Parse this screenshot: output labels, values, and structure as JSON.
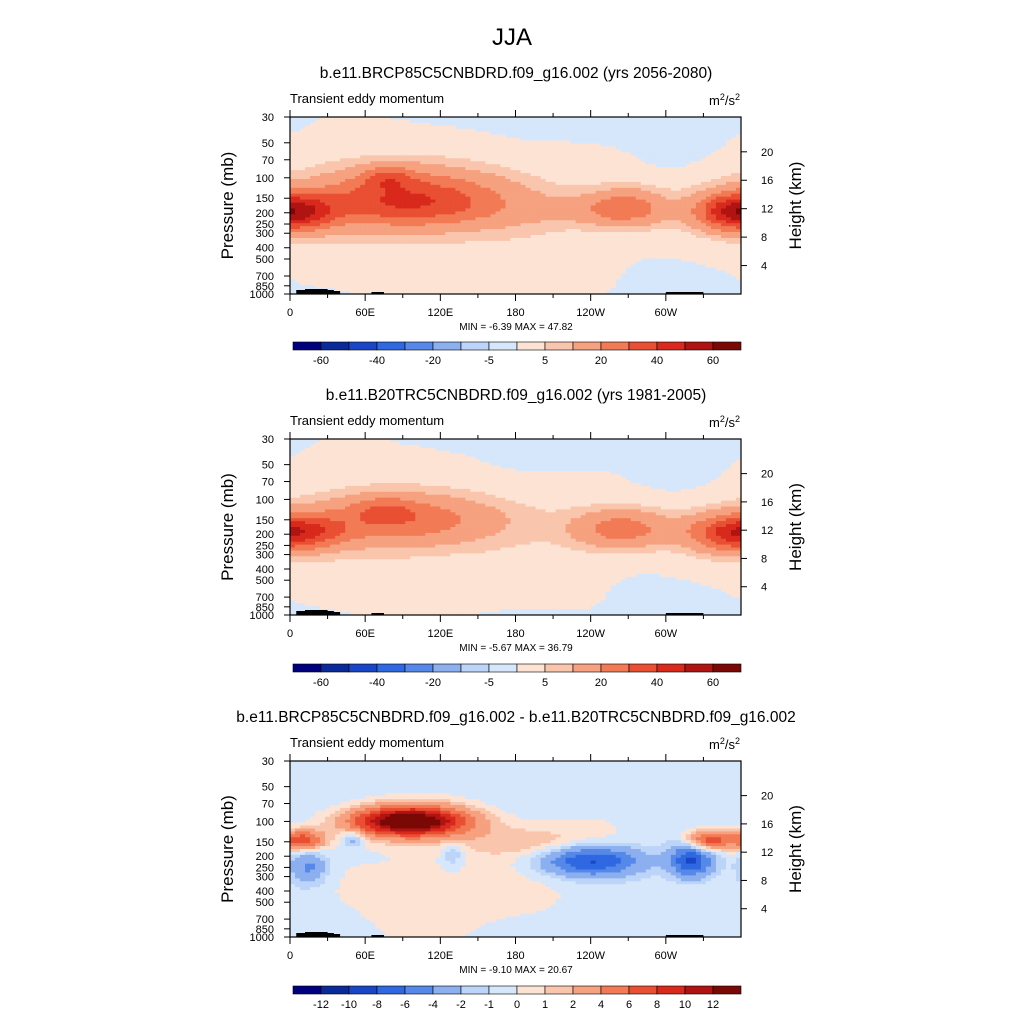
{
  "figure_title": "JJA",
  "colors": {
    "ocean": "#d4e6fb",
    "frame": "#000000",
    "terrain": "#000000"
  },
  "palette": [
    "#00007f",
    "#0a2a9a",
    "#1946c6",
    "#2f68e0",
    "#5588e8",
    "#8caff0",
    "#bcd4f7",
    "#d6e7fb",
    "#fde3d4",
    "#f9c6ad",
    "#f6a17f",
    "#f27a55",
    "#e94f33",
    "#d8291c",
    "#b01412",
    "#7a0805"
  ],
  "chart_data": [
    {
      "type": "heatmap",
      "title": "b.e11.BRCP85C5CNBDRD.f09_g16.002 (yrs 2056-2080)",
      "left_label": "Transient eddy momentum",
      "units": "m2/s2",
      "ylabel": "Pressure (mb)",
      "ylabel_right": "Height (km)",
      "x_ticks": [
        "0",
        "60E",
        "120E",
        "180",
        "120W",
        "60W"
      ],
      "x_tick_values": [
        0,
        60,
        120,
        180,
        240,
        300
      ],
      "xlim": [
        0,
        360
      ],
      "y_ticks": [
        "30",
        "50",
        "70",
        "100",
        "150",
        "200",
        "250",
        "300",
        "400",
        "500",
        "700",
        "850",
        "1000"
      ],
      "y_tick_values": [
        30,
        50,
        70,
        100,
        150,
        200,
        250,
        300,
        400,
        500,
        700,
        850,
        1000
      ],
      "ylim": [
        30,
        1000
      ],
      "height_ticks": [
        "20",
        "16",
        "12",
        "8",
        "4"
      ],
      "height_tick_values": [
        20,
        16,
        12,
        8,
        4
      ],
      "stats": "MIN =  -6.39  MAX =  47.82",
      "min": -6.39,
      "max": 47.82,
      "colorbar_levels": [
        -70,
        -60,
        -50,
        -40,
        -30,
        -20,
        -10,
        -5,
        0,
        5,
        10,
        20,
        30,
        40,
        50,
        60,
        70
      ],
      "colorbar_labels": [
        "-60",
        "-40",
        "-20",
        "-5",
        "5",
        "20",
        "40",
        "60"
      ],
      "colorbar_label_values": [
        -60,
        -40,
        -20,
        -5,
        5,
        20,
        40,
        60
      ],
      "features": [
        {
          "lon": 95,
          "p": 145,
          "dlon": 55,
          "dlogp": 0.17,
          "amp": 32
        },
        {
          "lon": 78,
          "p": 100,
          "dlon": 14,
          "dlogp": 0.07,
          "amp": 16
        },
        {
          "lon": 100,
          "p": 190,
          "dlon": 65,
          "dlogp": 0.12,
          "amp": 9
        },
        {
          "lon": 8,
          "p": 200,
          "dlon": 22,
          "dlogp": 0.11,
          "amp": 26
        },
        {
          "lon": 270,
          "p": 180,
          "dlon": 22,
          "dlogp": 0.12,
          "amp": 22
        },
        {
          "lon": 240,
          "p": 190,
          "dlon": 35,
          "dlogp": 0.09,
          "amp": 8
        },
        {
          "lon": 350,
          "p": 195,
          "dlon": 22,
          "dlogp": 0.12,
          "amp": 30
        },
        {
          "lon": 180,
          "p": 230,
          "dlon": 60,
          "dlogp": 0.35,
          "amp": 4
        },
        {
          "lon": 60,
          "p": 180,
          "dlon": 50,
          "dlogp": 0.4,
          "amp": 4
        }
      ]
    },
    {
      "type": "heatmap",
      "title": "b.e11.B20TRC5CNBDRD.f09_g16.002 (yrs 1981-2005)",
      "left_label": "Transient eddy momentum",
      "units": "m2/s2",
      "ylabel": "Pressure (mb)",
      "ylabel_right": "Height (km)",
      "x_ticks": [
        "0",
        "60E",
        "120E",
        "180",
        "120W",
        "60W"
      ],
      "x_tick_values": [
        0,
        60,
        120,
        180,
        240,
        300
      ],
      "xlim": [
        0,
        360
      ],
      "y_ticks": [
        "30",
        "50",
        "70",
        "100",
        "150",
        "200",
        "250",
        "300",
        "400",
        "500",
        "700",
        "850",
        "1000"
      ],
      "y_tick_values": [
        30,
        50,
        70,
        100,
        150,
        200,
        250,
        300,
        400,
        500,
        700,
        850,
        1000
      ],
      "ylim": [
        30,
        1000
      ],
      "height_ticks": [
        "20",
        "16",
        "12",
        "8",
        "4"
      ],
      "height_tick_values": [
        20,
        16,
        12,
        8,
        4
      ],
      "stats": "MIN =  -5.67  MAX =  36.79",
      "min": -5.67,
      "max": 36.79,
      "colorbar_levels": [
        -70,
        -60,
        -50,
        -40,
        -30,
        -20,
        -10,
        -5,
        0,
        5,
        10,
        20,
        30,
        40,
        50,
        60,
        70
      ],
      "colorbar_labels": [
        "-60",
        "-40",
        "-20",
        "-5",
        "5",
        "20",
        "40",
        "60"
      ],
      "colorbar_label_values": [
        -60,
        -40,
        -20,
        -5,
        5,
        20,
        40,
        60
      ],
      "features": [
        {
          "lon": 90,
          "p": 150,
          "dlon": 55,
          "dlogp": 0.15,
          "amp": 25
        },
        {
          "lon": 75,
          "p": 120,
          "dlon": 18,
          "dlogp": 0.08,
          "amp": 10
        },
        {
          "lon": 10,
          "p": 190,
          "dlon": 25,
          "dlogp": 0.1,
          "amp": 22
        },
        {
          "lon": 265,
          "p": 180,
          "dlon": 28,
          "dlogp": 0.12,
          "amp": 25
        },
        {
          "lon": 350,
          "p": 200,
          "dlon": 25,
          "dlogp": 0.12,
          "amp": 28
        },
        {
          "lon": 180,
          "p": 230,
          "dlon": 60,
          "dlogp": 0.35,
          "amp": 3
        },
        {
          "lon": 60,
          "p": 180,
          "dlon": 50,
          "dlogp": 0.4,
          "amp": 4
        }
      ]
    },
    {
      "type": "heatmap",
      "title": "b.e11.BRCP85C5CNBDRD.f09_g16.002 - b.e11.B20TRC5CNBDRD.f09_g16.002",
      "left_label": "Transient eddy momentum",
      "units": "m2/s2",
      "ylabel": "Pressure (mb)",
      "ylabel_right": "Height (km)",
      "x_ticks": [
        "0",
        "60E",
        "120E",
        "180",
        "120W",
        "60W"
      ],
      "x_tick_values": [
        0,
        60,
        120,
        180,
        240,
        300
      ],
      "xlim": [
        0,
        360
      ],
      "y_ticks": [
        "30",
        "50",
        "70",
        "100",
        "150",
        "200",
        "250",
        "300",
        "400",
        "500",
        "700",
        "850",
        "1000"
      ],
      "y_tick_values": [
        30,
        50,
        70,
        100,
        150,
        200,
        250,
        300,
        400,
        500,
        700,
        850,
        1000
      ],
      "ylim": [
        30,
        1000
      ],
      "height_ticks": [
        "20",
        "16",
        "12",
        "8",
        "4"
      ],
      "height_tick_values": [
        20,
        16,
        12,
        8,
        4
      ],
      "stats": "MIN =  -9.10  MAX =  20.67",
      "min": -9.1,
      "max": 20.67,
      "colorbar_levels": [
        -14,
        -12,
        -10,
        -8,
        -6,
        -4,
        -2,
        -1,
        0,
        1,
        2,
        4,
        6,
        8,
        10,
        12,
        14
      ],
      "colorbar_labels": [
        "-12",
        "-10",
        "-8",
        "-6",
        "-4",
        "-2",
        "-1",
        "0",
        "1",
        "2",
        "4",
        "6",
        "8",
        "10",
        "12"
      ],
      "colorbar_label_values": [
        -12,
        -10,
        -8,
        -6,
        -4,
        -2,
        -1,
        0,
        1,
        2,
        4,
        6,
        8,
        10,
        12
      ],
      "features": [
        {
          "lon": 95,
          "p": 100,
          "dlon": 32,
          "dlogp": 0.09,
          "amp": 16
        },
        {
          "lon": 10,
          "p": 145,
          "dlon": 12,
          "dlogp": 0.06,
          "amp": 8
        },
        {
          "lon": 335,
          "p": 145,
          "dlon": 12,
          "dlogp": 0.06,
          "amp": 8
        },
        {
          "lon": 190,
          "p": 150,
          "dlon": 40,
          "dlogp": 0.1,
          "amp": 2
        },
        {
          "lon": 240,
          "p": 220,
          "dlon": 28,
          "dlogp": 0.09,
          "amp": -8
        },
        {
          "lon": 320,
          "p": 220,
          "dlon": 12,
          "dlogp": 0.1,
          "amp": -8
        },
        {
          "lon": 15,
          "p": 250,
          "dlon": 10,
          "dlogp": 0.1,
          "amp": -4
        },
        {
          "lon": 50,
          "p": 140,
          "dlon": 6,
          "dlogp": 0.05,
          "amp": -3
        },
        {
          "lon": 130,
          "p": 190,
          "dlon": 6,
          "dlogp": 0.08,
          "amp": -2
        },
        {
          "lon": 100,
          "p": 500,
          "dlon": 40,
          "dlogp": 0.3,
          "amp": 0.8
        },
        {
          "lon": 180,
          "p": 300,
          "dlon": 80,
          "dlogp": 0.4,
          "amp": 0.7
        }
      ]
    }
  ]
}
